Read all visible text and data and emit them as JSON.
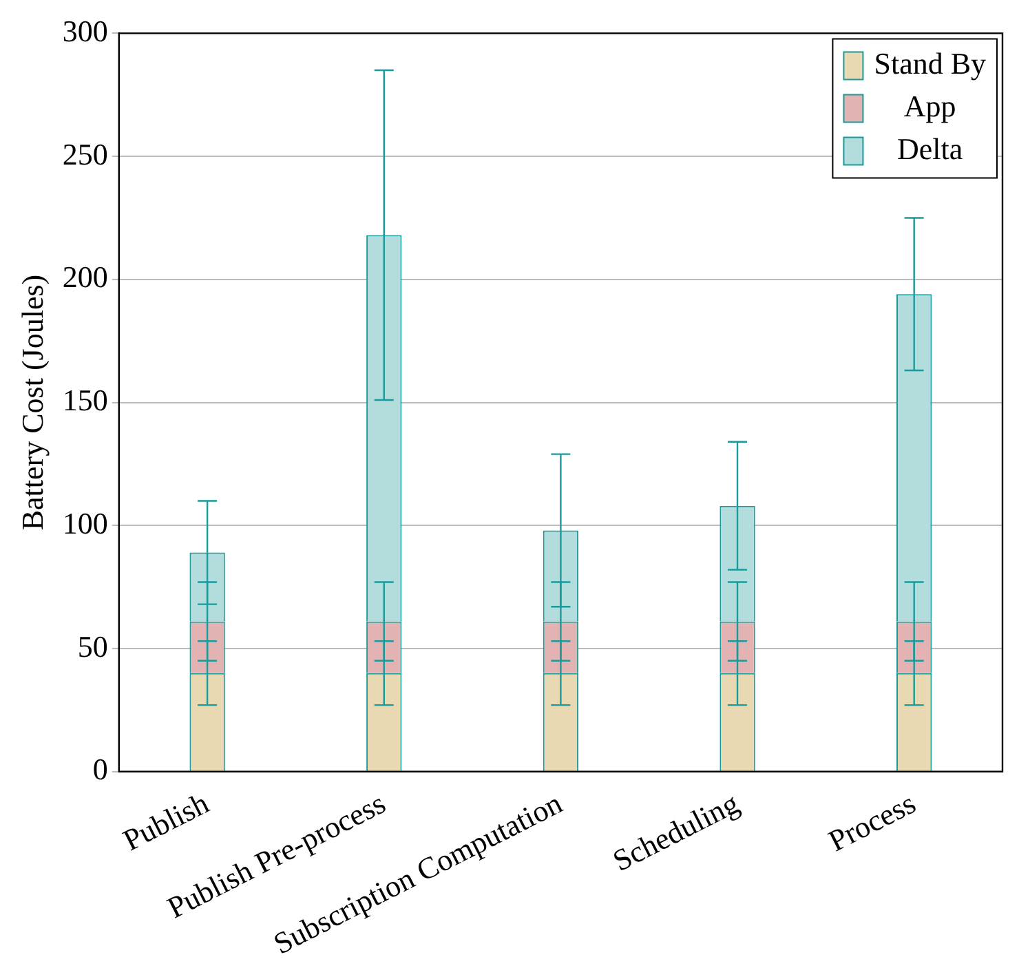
{
  "chart_data": {
    "type": "bar",
    "ylabel": "Battery Cost (Joules)",
    "categories": [
      "Publish",
      "Publish Pre-process",
      "Subscription Computation",
      "Scheduling",
      "Process"
    ],
    "stacked": true,
    "ylim": [
      0,
      300
    ],
    "yticks": [
      0,
      50,
      100,
      150,
      200,
      250,
      300
    ],
    "grid": "y",
    "legend": "top right",
    "series": [
      {
        "name": "Stand By",
        "color": "#e8d9b3",
        "values": [
          40,
          40,
          40,
          40,
          40
        ],
        "errors": [
          13,
          13,
          13,
          13,
          13
        ]
      },
      {
        "name": "App",
        "color": "#e3b3b3",
        "values": [
          21,
          21,
          21,
          21,
          21
        ],
        "errors": [
          16,
          16,
          16,
          16,
          16
        ]
      },
      {
        "name": "Delta",
        "color": "#b3dddd",
        "values": [
          28,
          157,
          37,
          47,
          133
        ],
        "errors": [
          21,
          67,
          31,
          26,
          31
        ]
      }
    ]
  }
}
